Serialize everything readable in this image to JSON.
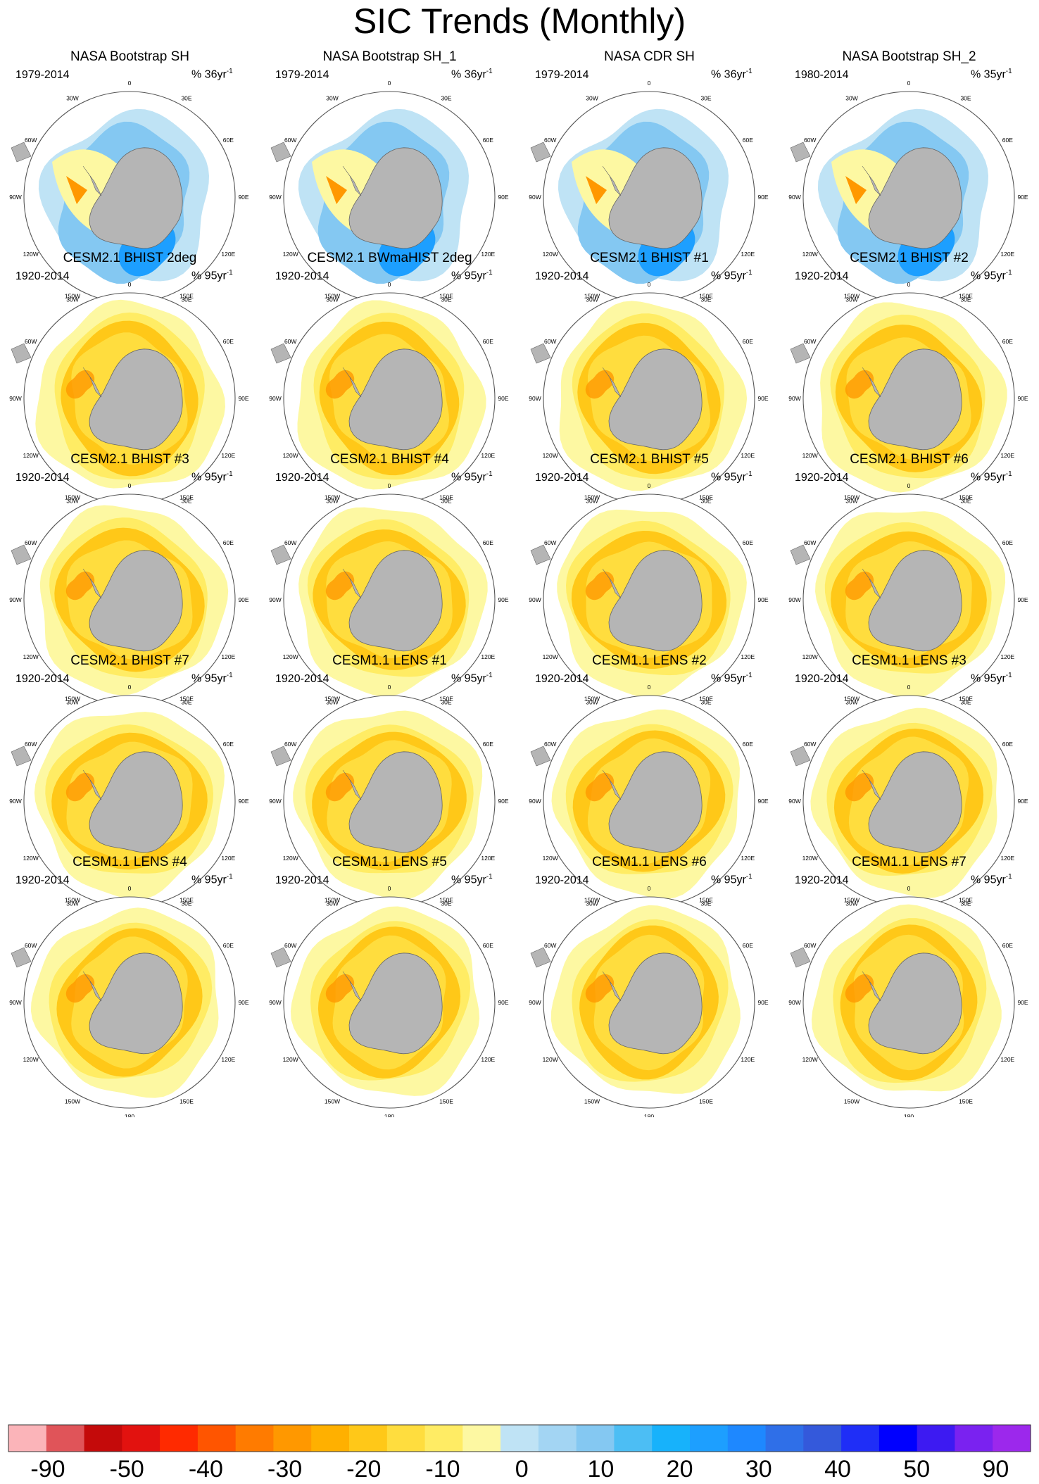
{
  "title": "SIC Trends (Monthly)",
  "panel_labels": {
    "unit_prefix": "%",
    "unit_exp": "-1",
    "lon_labels": [
      "0",
      "30E",
      "60E",
      "90E",
      "120E",
      "150E",
      "180",
      "150W",
      "120W",
      "90W",
      "60W",
      "30W"
    ]
  },
  "chart_data": {
    "type": "heatmap",
    "projection": "south polar stereographic",
    "layout": {
      "rows": 5,
      "cols": 4
    },
    "colorbar": {
      "colors": [
        "#fbb4b9",
        "#e05459",
        "#c40a0a",
        "#e2120f",
        "#ff2a00",
        "#ff5500",
        "#ff7b00",
        "#ff9800",
        "#ffb000",
        "#ffc818",
        "#ffdd3e",
        "#ffec64",
        "#fdf8a2",
        "#bfe3f5",
        "#a3d5f3",
        "#84c8f2",
        "#4cbef4",
        "#17b2fb",
        "#1d9fff",
        "#1e88ff",
        "#2f6fe8",
        "#3459db",
        "#1f2ef7",
        "#0000ff",
        "#3d1af2",
        "#7a22f0",
        "#9c28ec"
      ],
      "tick_labels": [
        "-90",
        "-50",
        "-40",
        "-30",
        "-20",
        "-10",
        "0",
        "10",
        "20",
        "30",
        "40",
        "50",
        "90"
      ]
    },
    "panels": [
      {
        "title": "NASA Bootstrap SH",
        "period": "1979-2014",
        "scale": "36yr",
        "pattern": "obs"
      },
      {
        "title": "NASA Bootstrap SH_1",
        "period": "1979-2014",
        "scale": "36yr",
        "pattern": "obs"
      },
      {
        "title": "NASA CDR SH",
        "period": "1979-2014",
        "scale": "36yr",
        "pattern": "obs"
      },
      {
        "title": "NASA Bootstrap SH_2",
        "period": "1980-2014",
        "scale": "35yr",
        "pattern": "obs"
      },
      {
        "title": "CESM2.1 BHIST 2deg",
        "period": "1920-2014",
        "scale": "95yr",
        "pattern": "model"
      },
      {
        "title": "CESM2.1 BWmaHIST 2deg",
        "period": "1920-2014",
        "scale": "95yr",
        "pattern": "model"
      },
      {
        "title": "CESM2.1 BHIST #1",
        "period": "1920-2014",
        "scale": "95yr",
        "pattern": "model"
      },
      {
        "title": "CESM2.1 BHIST #2",
        "period": "1920-2014",
        "scale": "95yr",
        "pattern": "model"
      },
      {
        "title": "CESM2.1 BHIST #3",
        "period": "1920-2014",
        "scale": "95yr",
        "pattern": "model"
      },
      {
        "title": "CESM2.1 BHIST #4",
        "period": "1920-2014",
        "scale": "95yr",
        "pattern": "model"
      },
      {
        "title": "CESM2.1 BHIST #5",
        "period": "1920-2014",
        "scale": "95yr",
        "pattern": "model"
      },
      {
        "title": "CESM2.1 BHIST #6",
        "period": "1920-2014",
        "scale": "95yr",
        "pattern": "model"
      },
      {
        "title": "CESM2.1 BHIST #7",
        "period": "1920-2014",
        "scale": "95yr",
        "pattern": "model"
      },
      {
        "title": "CESM1.1 LENS #1",
        "period": "1920-2014",
        "scale": "95yr",
        "pattern": "model"
      },
      {
        "title": "CESM1.1 LENS #2",
        "period": "1920-2014",
        "scale": "95yr",
        "pattern": "model"
      },
      {
        "title": "CESM1.1 LENS #3",
        "period": "1920-2014",
        "scale": "95yr",
        "pattern": "model"
      },
      {
        "title": "CESM1.1 LENS #4",
        "period": "1920-2014",
        "scale": "95yr",
        "pattern": "model"
      },
      {
        "title": "CESM1.1 LENS #5",
        "period": "1920-2014",
        "scale": "95yr",
        "pattern": "model"
      },
      {
        "title": "CESM1.1 LENS #6",
        "period": "1920-2014",
        "scale": "95yr",
        "pattern": "model"
      },
      {
        "title": "CESM1.1 LENS #7",
        "period": "1920-2014",
        "scale": "95yr",
        "pattern": "model"
      }
    ]
  }
}
